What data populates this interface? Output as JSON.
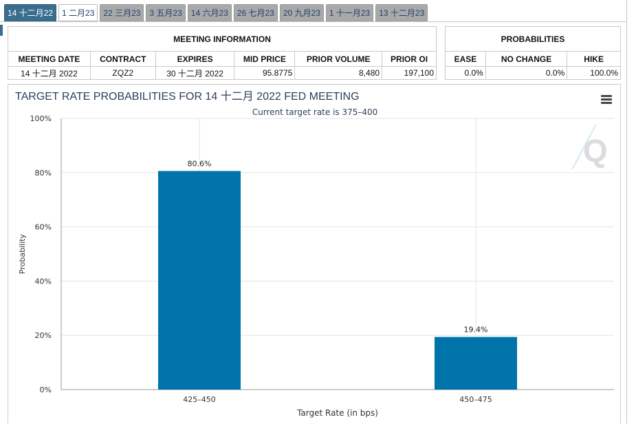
{
  "tabs": [
    {
      "label": "14 十二月22",
      "state": "active"
    },
    {
      "label": "1 二月23",
      "state": "light"
    },
    {
      "label": "22 三月23",
      "state": ""
    },
    {
      "label": "3 五月23",
      "state": ""
    },
    {
      "label": "14 六月23",
      "state": ""
    },
    {
      "label": "26 七月23",
      "state": ""
    },
    {
      "label": "20 九月23",
      "state": ""
    },
    {
      "label": "1 十一月23",
      "state": ""
    },
    {
      "label": "13 十二月23",
      "state": ""
    }
  ],
  "meeting_info": {
    "title": "MEETING INFORMATION",
    "headers": [
      "MEETING DATE",
      "CONTRACT",
      "EXPIRES",
      "MID PRICE",
      "PRIOR VOLUME",
      "PRIOR OI"
    ],
    "row": [
      "14 十二月 2022",
      "ZQZ2",
      "30 十二月 2022",
      "95.8775",
      "8,480",
      "197,100"
    ]
  },
  "probabilities": {
    "title": "PROBABILITIES",
    "headers": [
      "EASE",
      "NO CHANGE",
      "HIKE"
    ],
    "row": [
      "0.0%",
      "0.0%",
      "100.0%"
    ]
  },
  "chart_data": {
    "type": "bar",
    "title": "TARGET RATE PROBABILITIES FOR 14 十二月 2022 FED MEETING",
    "subtitle": "Current target rate is 375–400",
    "xlabel": "Target Rate (in bps)",
    "ylabel": "Probability",
    "categories": [
      "425–450",
      "450–475"
    ],
    "values": [
      80.6,
      19.4
    ],
    "data_labels": [
      "80.6%",
      "19.4%"
    ],
    "ylim": [
      0,
      100
    ],
    "yticks": [
      0,
      20,
      40,
      60,
      80,
      100
    ],
    "ytick_labels": [
      "0%",
      "20%",
      "40%",
      "60%",
      "80%",
      "100%"
    ],
    "bar_color": "#0073ab",
    "grid": true,
    "watermark": "Q"
  },
  "menu_icon": "hamburger-menu-icon"
}
